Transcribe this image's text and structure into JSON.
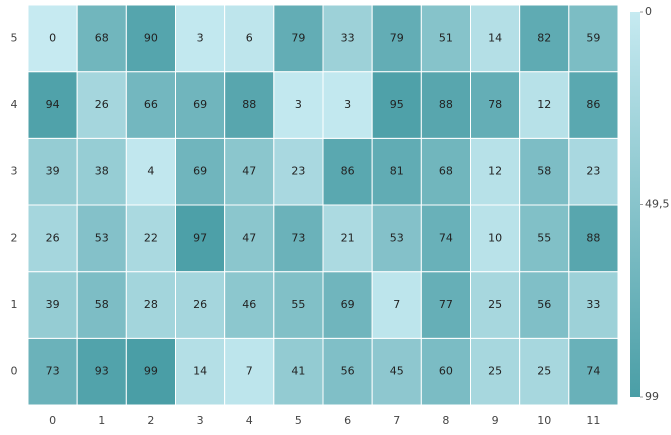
{
  "chart_data": {
    "type": "heatmap",
    "x": [
      0,
      1,
      2,
      3,
      4,
      5,
      6,
      7,
      8,
      9,
      10,
      11
    ],
    "y": [
      0,
      1,
      2,
      3,
      4,
      5
    ],
    "values": [
      [
        73,
        93,
        99,
        14,
        7,
        41,
        56,
        45,
        60,
        25,
        25,
        74
      ],
      [
        39,
        58,
        28,
        26,
        46,
        55,
        69,
        7,
        77,
        25,
        56,
        33
      ],
      [
        26,
        53,
        22,
        97,
        47,
        73,
        21,
        53,
        74,
        10,
        55,
        88
      ],
      [
        39,
        38,
        4,
        69,
        47,
        23,
        86,
        81,
        68,
        12,
        58,
        23
      ],
      [
        94,
        26,
        66,
        69,
        88,
        3,
        3,
        95,
        88,
        78,
        12,
        86
      ],
      [
        0,
        68,
        90,
        3,
        6,
        79,
        33,
        79,
        51,
        14,
        82,
        59
      ]
    ],
    "zlim": [
      0,
      99
    ],
    "colorbar_ticks": [
      0,
      {
        "value": 49.5,
        "label": "49,5"
      },
      99
    ],
    "colors": [
      "#c6eaf1",
      "#4a9ea6"
    ]
  }
}
